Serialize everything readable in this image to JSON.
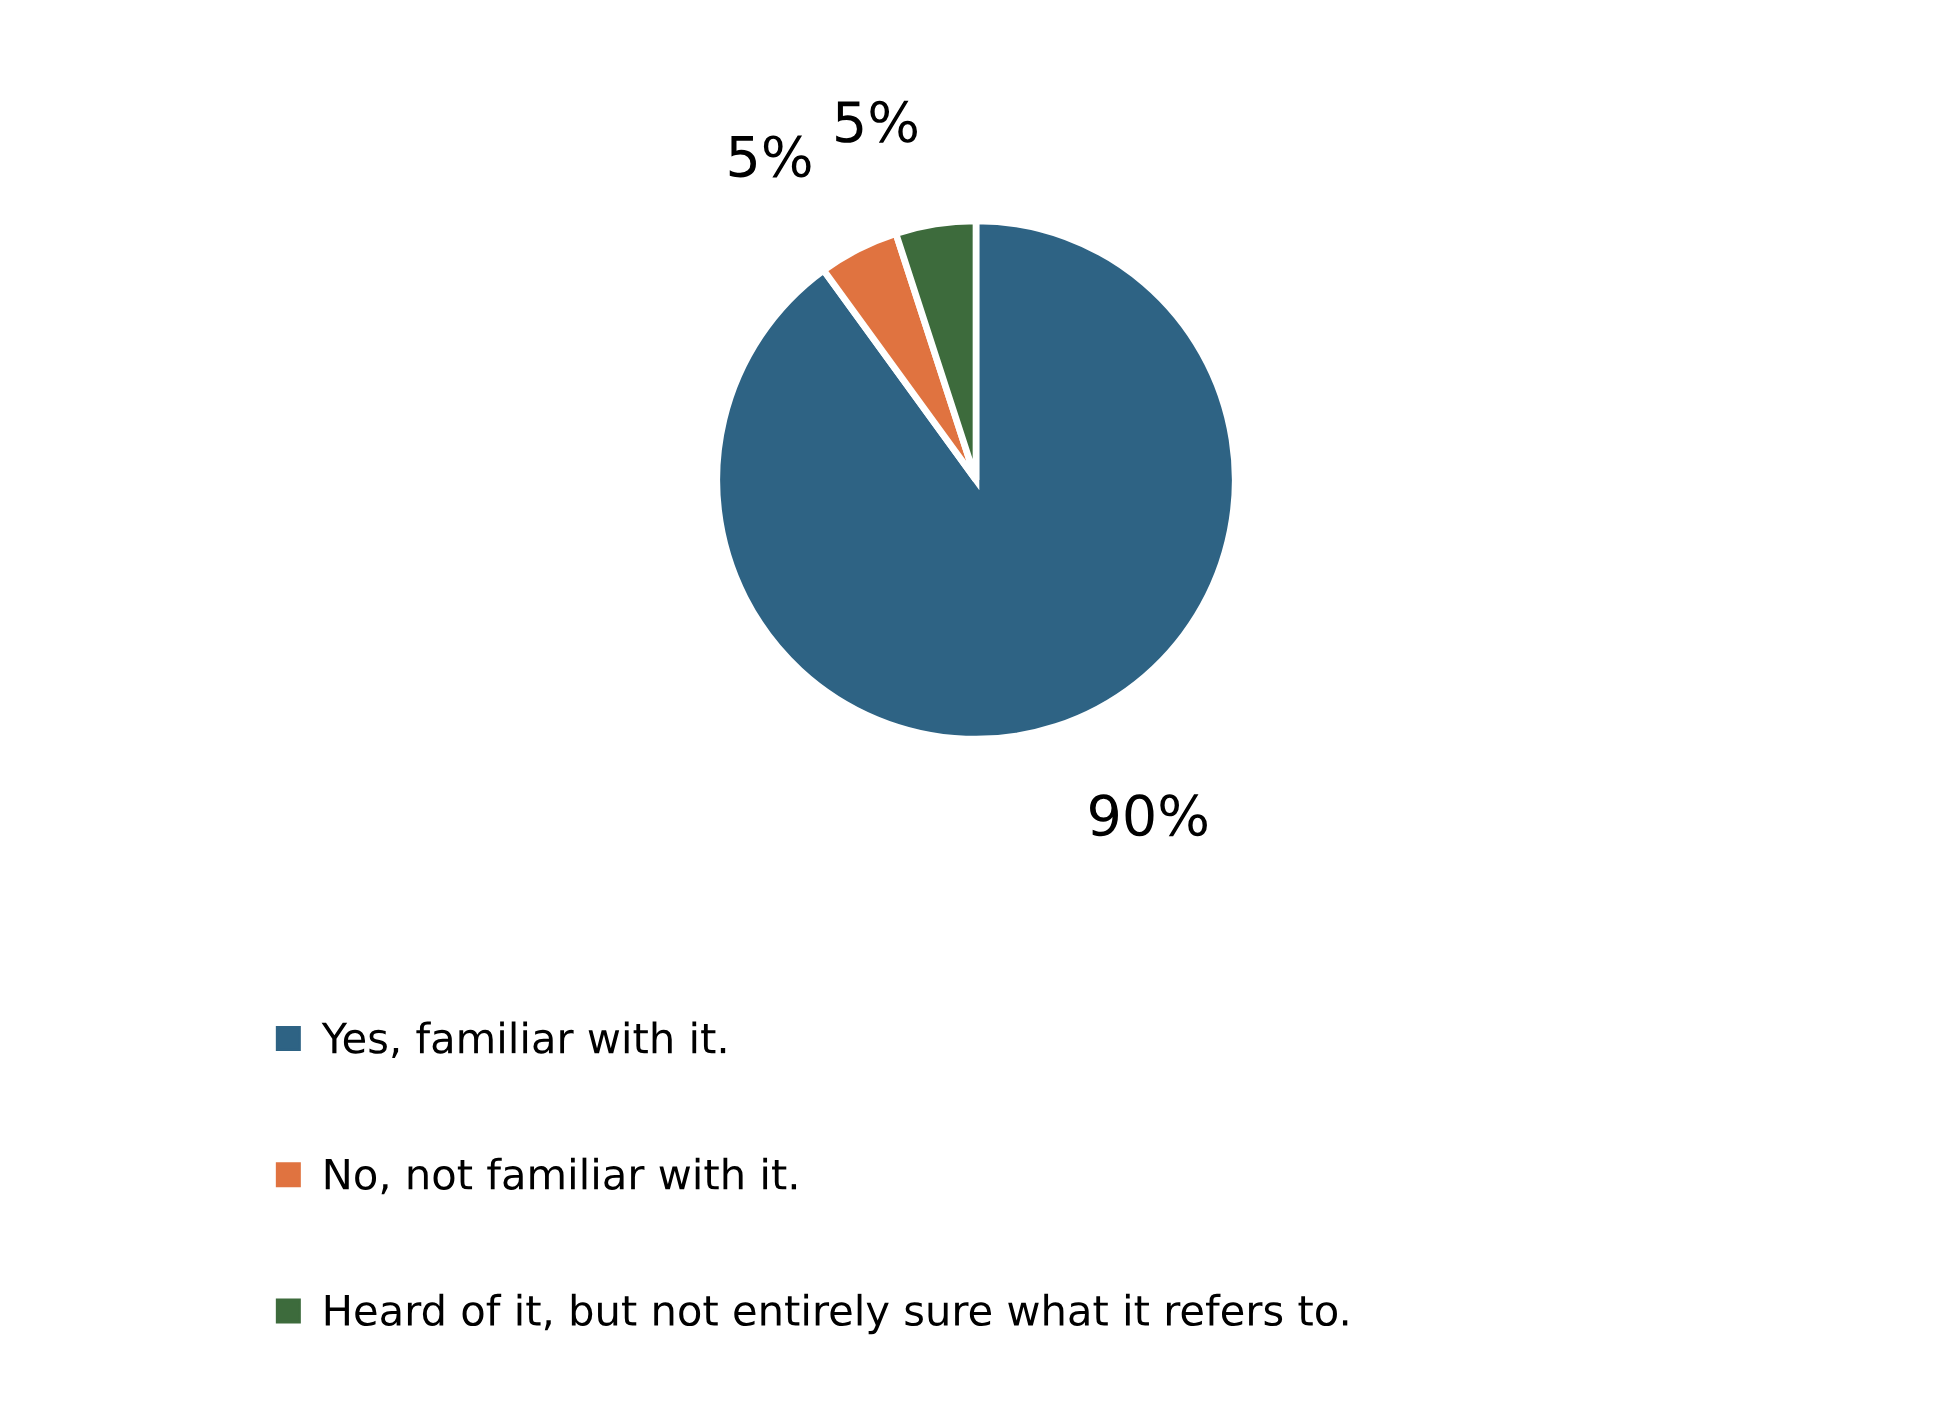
{
  "chart_data": {
    "type": "pie",
    "categories": [
      "Yes, familiar with it.",
      "No, not familiar with it.",
      "Heard of it, but not entirely sure what it refers to."
    ],
    "values": [
      90,
      5,
      5
    ],
    "colors": [
      "#2e6384",
      "#e07340",
      "#3d6b3c"
    ],
    "value_labels": [
      "90%",
      "5%",
      "5%"
    ],
    "legend": "bottom"
  }
}
